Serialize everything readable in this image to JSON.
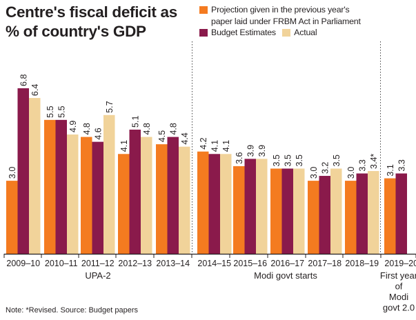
{
  "title_lines": [
    "Centre's fiscal deficit as",
    "% of country's GDP"
  ],
  "legend": {
    "projection_line1": "Projection given in the previous year's",
    "projection_line2": "paper laid under FRBM Act in Parliament",
    "budget": "Budget Estimates",
    "actual": "Actual"
  },
  "colors": {
    "projection": "#f47b20",
    "budget": "#8a1a4b",
    "actual": "#f1d39a",
    "axis": "#231f20"
  },
  "footnote": "Note: *Revised. Source: Budget papers",
  "chart_data": {
    "type": "bar",
    "title": "Centre's fiscal deficit as % of country's GDP",
    "xlabel": "",
    "ylabel": "",
    "ylim": [
      0,
      7
    ],
    "grid": false,
    "legend_position": "top-right",
    "categories": [
      "2009–10",
      "2010–11",
      "2011–12",
      "2012–13",
      "2013–14",
      "2014–15",
      "2015–16",
      "2016–17",
      "2017–18",
      "2018–19",
      "2019–20"
    ],
    "series": [
      {
        "name": "Projection given in the previous year's paper laid under FRBM Act in Parliament",
        "color": "#f47b20",
        "values": [
          3.0,
          5.5,
          4.8,
          4.1,
          4.5,
          4.2,
          3.6,
          3.5,
          3.0,
          3.0,
          3.1
        ]
      },
      {
        "name": "Budget Estimates",
        "color": "#8a1a4b",
        "values": [
          6.8,
          5.5,
          4.6,
          5.1,
          4.8,
          4.1,
          3.9,
          3.5,
          3.2,
          3.3,
          3.3
        ]
      },
      {
        "name": "Actual",
        "color": "#f1d39a",
        "values": [
          6.4,
          4.9,
          5.7,
          4.8,
          4.4,
          4.1,
          3.9,
          3.5,
          3.5,
          3.4,
          null
        ]
      }
    ],
    "value_labels": [
      [
        "3.0",
        "6.8",
        "6.4"
      ],
      [
        "5.5",
        "5.5",
        "4.9"
      ],
      [
        "4.8",
        "4.6",
        "5.7"
      ],
      [
        "4.1",
        "5.1",
        "4.8"
      ],
      [
        "4.5",
        "4.8",
        "4.4"
      ],
      [
        "4.2",
        "4.1",
        "4.1"
      ],
      [
        "3.6",
        "3.9",
        "3.9"
      ],
      [
        "3.5",
        "3.5",
        "3.5"
      ],
      [
        "3.0",
        "3.2",
        "3.5"
      ],
      [
        "3.0",
        "3.3",
        "3.4*"
      ],
      [
        "3.1",
        "3.3",
        null
      ]
    ],
    "annotations": {
      "upa": "UPA-2",
      "modi": "Modi govt starts",
      "first_year": [
        "First year",
        "of",
        "Modi",
        "govt 2.0"
      ]
    }
  }
}
